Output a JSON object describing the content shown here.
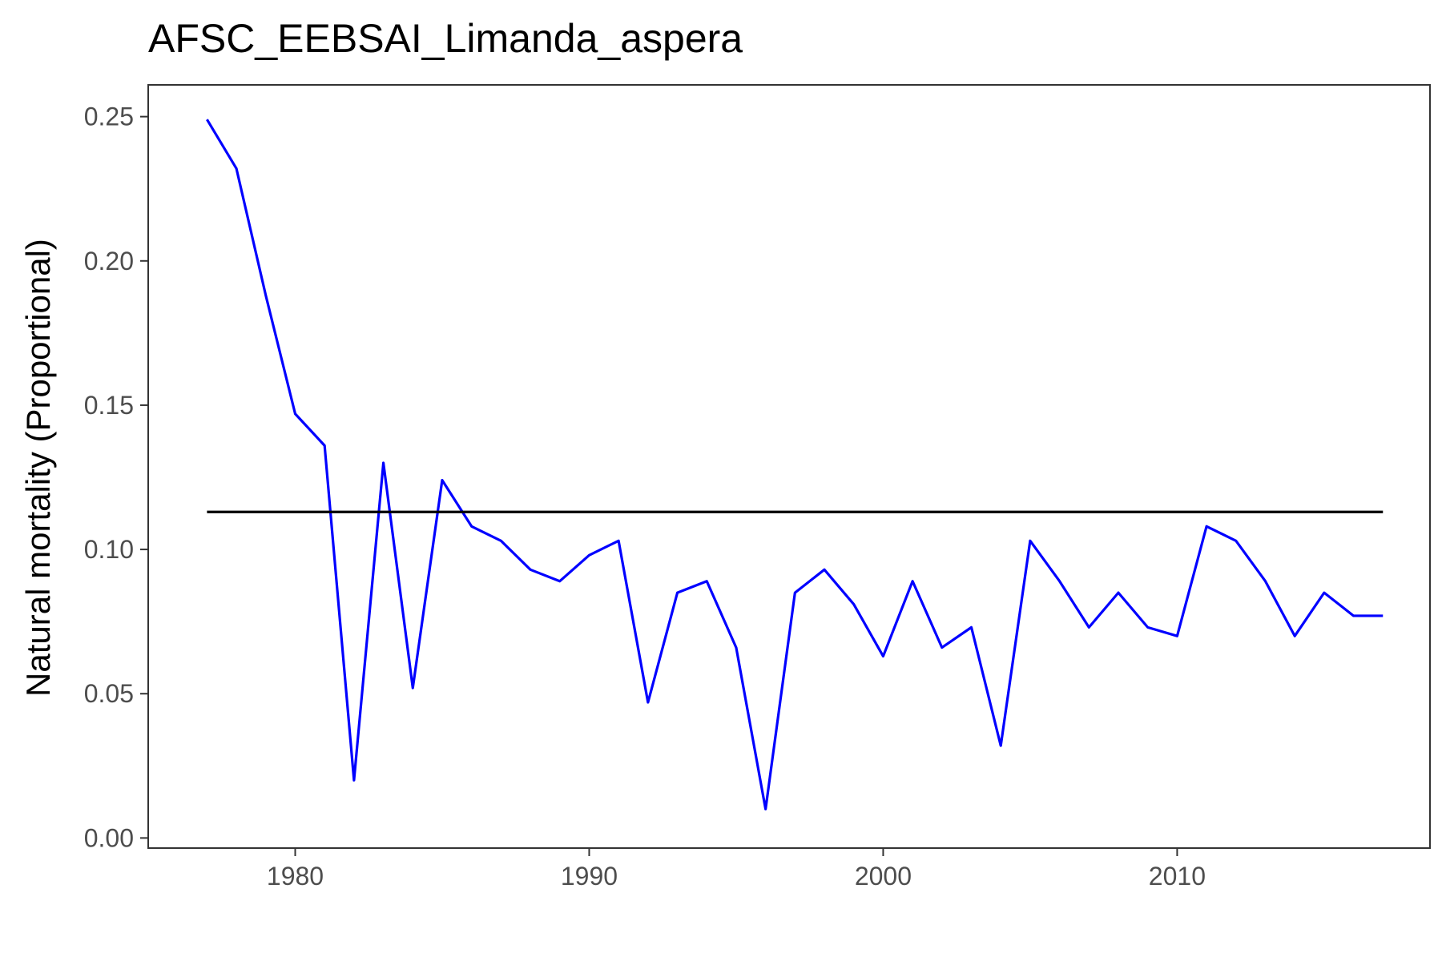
{
  "chart_data": {
    "type": "line",
    "title": "AFSC_EEBSAI_Limanda_aspera",
    "xlabel": "",
    "ylabel": "Natural mortality (Proportional)",
    "xlim": [
      1975.0,
      2018.6
    ],
    "ylim": [
      -0.0035,
      0.261
    ],
    "x_ticks": [
      1980,
      1990,
      2000,
      2010
    ],
    "y_ticks": [
      0.0,
      0.05,
      0.1,
      0.15,
      0.2,
      0.25
    ],
    "x_tick_labels": [
      "1980",
      "1990",
      "2000",
      "2010"
    ],
    "y_tick_labels": [
      "0.00",
      "0.05",
      "0.10",
      "0.15",
      "0.20",
      "0.25"
    ],
    "grid": false,
    "legend": "none",
    "series": [
      {
        "color": "#0000ff",
        "x": [
          1977,
          1978,
          1979,
          1980,
          1981,
          1982,
          1983,
          1984,
          1985,
          1986,
          1987,
          1988,
          1989,
          1990,
          1991,
          1992,
          1993,
          1994,
          1995,
          1996,
          1997,
          1998,
          1999,
          2000,
          2001,
          2002,
          2003,
          2004,
          2005,
          2006,
          2007,
          2008,
          2009,
          2010,
          2011,
          2012,
          2013,
          2014,
          2015,
          2016,
          2017
        ],
        "y": [
          0.249,
          0.232,
          0.188,
          0.147,
          0.136,
          0.02,
          0.13,
          0.052,
          0.124,
          0.108,
          0.103,
          0.093,
          0.089,
          0.098,
          0.103,
          0.047,
          0.085,
          0.089,
          0.066,
          0.01,
          0.085,
          0.093,
          0.081,
          0.063,
          0.089,
          0.066,
          0.073,
          0.032,
          0.103,
          0.089,
          0.073,
          0.085,
          0.073,
          0.07,
          0.108,
          0.103,
          0.089,
          0.07,
          0.085,
          0.077,
          0.077
        ]
      },
      {
        "color": "#000000",
        "x": [
          1977,
          2017
        ],
        "y": [
          0.113,
          0.113
        ]
      }
    ]
  }
}
